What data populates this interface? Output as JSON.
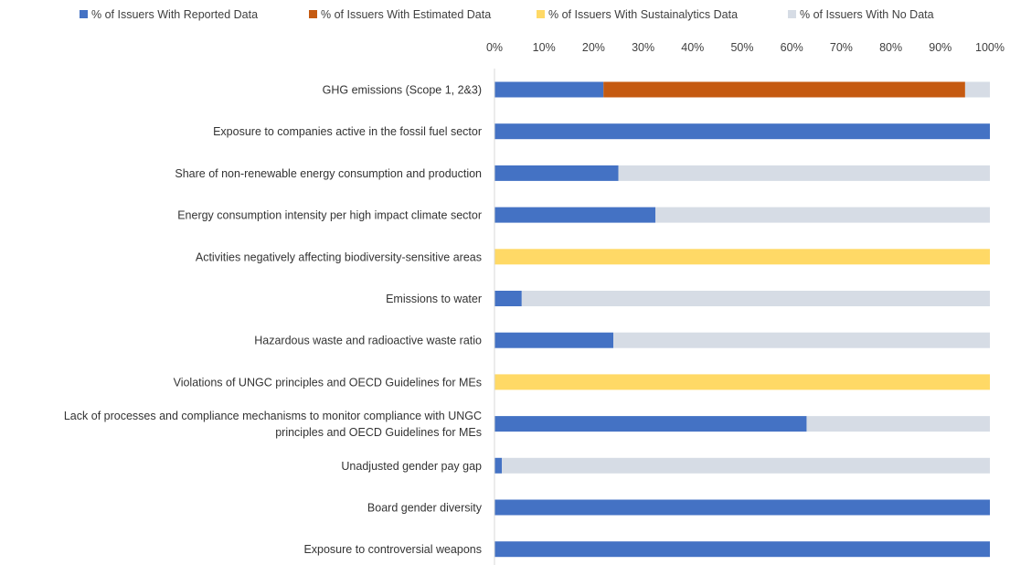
{
  "chart_data": {
    "type": "bar",
    "orientation": "horizontal",
    "stacked": true,
    "title": "",
    "xlabel": "",
    "ylabel": "",
    "xlim": [
      0,
      100
    ],
    "x_ticks": [
      "0%",
      "10%",
      "20%",
      "30%",
      "40%",
      "50%",
      "60%",
      "70%",
      "80%",
      "90%",
      "100%"
    ],
    "x_axis_position": "top",
    "grid": false,
    "legend_position": "top",
    "categories": [
      [
        "GHG emissions (Scope 1, 2&3)"
      ],
      [
        "Exposure to companies active in the fossil fuel sector"
      ],
      [
        "Share of non-renewable energy consumption and production"
      ],
      [
        "Energy consumption intensity per high impact climate sector"
      ],
      [
        "Activities negatively affecting biodiversity-sensitive areas"
      ],
      [
        "Emissions to water"
      ],
      [
        "Hazardous waste and radioactive waste ratio"
      ],
      [
        "Violations of UNGC principles and OECD Guidelines for MEs"
      ],
      [
        "Lack of processes and compliance mechanisms to monitor compliance with UNGC",
        "principles and  OECD Guidelines for MEs"
      ],
      [
        "Unadjusted gender pay gap"
      ],
      [
        "Board gender diversity"
      ],
      [
        "Exposure to controversial weapons"
      ]
    ],
    "series": [
      {
        "name": "% of Issuers With Reported Data",
        "color": "#4472C4",
        "values": [
          22,
          100,
          25,
          32.5,
          0,
          5.5,
          24,
          0,
          63,
          1.5,
          100,
          100
        ]
      },
      {
        "name": "% of Issuers With Estimated Data",
        "color": "#C55A11",
        "values": [
          73,
          0,
          0,
          0,
          0,
          0,
          0,
          0,
          0,
          0,
          0,
          0
        ]
      },
      {
        "name": "% of Issuers With Sustainalytics Data",
        "color": "#FFD966",
        "values": [
          0,
          0,
          0,
          0,
          100,
          0,
          0,
          100,
          0,
          0,
          0,
          0
        ]
      },
      {
        "name": "% of Issuers With No Data",
        "color": "#D6DCE5",
        "values": [
          5,
          0,
          75,
          67.5,
          0,
          94.5,
          76,
          0,
          37,
          98.5,
          0,
          0
        ]
      }
    ]
  }
}
